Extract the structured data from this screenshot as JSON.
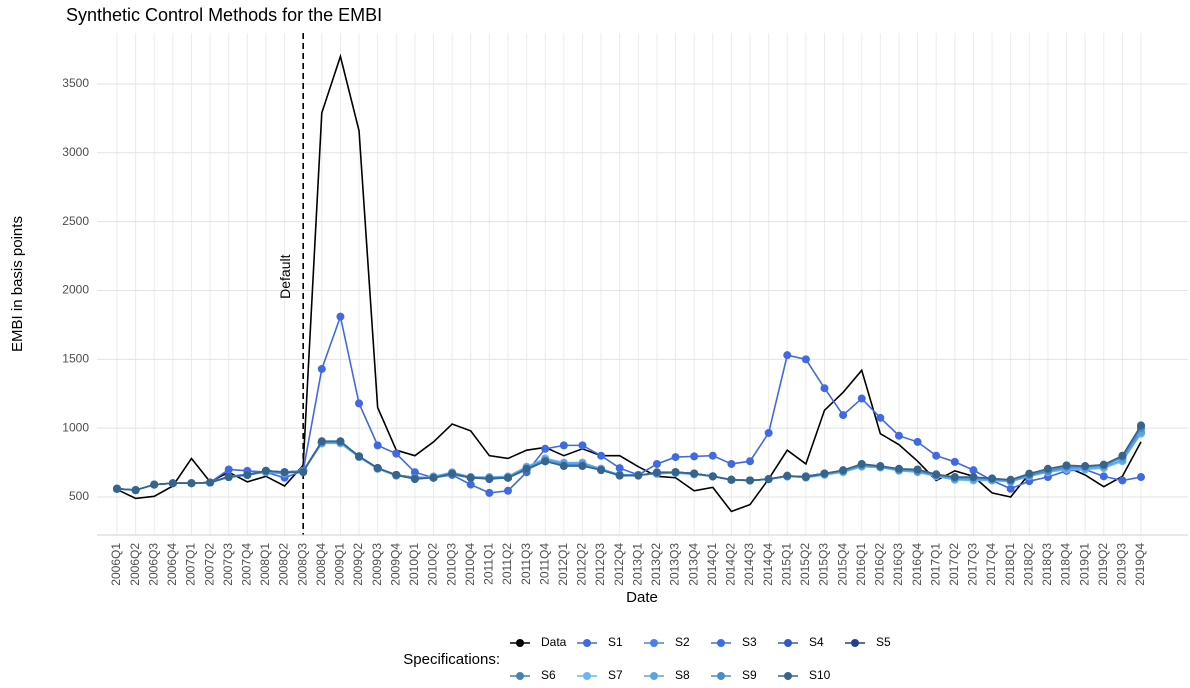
{
  "chart_data": {
    "type": "line",
    "title": "Synthetic Control Methods for the EMBI",
    "x_label": "Date",
    "y_label": "EMBI in basis points",
    "legend_title": "Specifications:",
    "annotation": {
      "text": "Default",
      "category": "2008Q3"
    },
    "categories": [
      "2006Q1",
      "2006Q2",
      "2006Q3",
      "2006Q4",
      "2007Q1",
      "2007Q2",
      "2007Q3",
      "2007Q4",
      "2008Q1",
      "2008Q2",
      "2008Q3",
      "2008Q4",
      "2009Q1",
      "2009Q2",
      "2009Q3",
      "2009Q4",
      "2010Q1",
      "2010Q2",
      "2010Q3",
      "2010Q4",
      "2011Q1",
      "2011Q2",
      "2011Q3",
      "2011Q4",
      "2012Q1",
      "2012Q2",
      "2012Q3",
      "2012Q4",
      "2013Q1",
      "2013Q2",
      "2013Q3",
      "2013Q4",
      "2014Q1",
      "2014Q2",
      "2014Q3",
      "2014Q4",
      "2015Q1",
      "2015Q2",
      "2015Q3",
      "2015Q4",
      "2016Q1",
      "2016Q2",
      "2016Q3",
      "2016Q4",
      "2017Q1",
      "2017Q2",
      "2017Q3",
      "2017Q4",
      "2018Q1",
      "2018Q2",
      "2018Q3",
      "2018Q4",
      "2019Q1",
      "2019Q2",
      "2019Q3",
      "2019Q4"
    ],
    "ylim": [
      224,
      3870
    ],
    "yticks": [
      500,
      1000,
      1500,
      2000,
      2500,
      3000,
      3500
    ],
    "grid": true,
    "legend_position": "bottom",
    "series": [
      {
        "name": "Data",
        "color": "#000000",
        "marker": false,
        "values": [
          555,
          490,
          505,
          580,
          780,
          610,
          680,
          610,
          650,
          580,
          730,
          3290,
          3700,
          3160,
          1150,
          840,
          800,
          900,
          1030,
          980,
          800,
          780,
          840,
          860,
          800,
          850,
          800,
          800,
          720,
          650,
          640,
          545,
          570,
          395,
          445,
          630,
          840,
          740,
          1130,
          1260,
          1420,
          960,
          880,
          760,
          620,
          690,
          650,
          530,
          500,
          670,
          680,
          720,
          660,
          575,
          650,
          900
        ]
      },
      {
        "name": "S1",
        "color": "#4169e1",
        "marker": true,
        "values": [
          560,
          550,
          590,
          600,
          600,
          605,
          700,
          690,
          680,
          640,
          690,
          1430,
          1810,
          1180,
          875,
          815,
          680,
          640,
          660,
          590,
          530,
          545,
          680,
          850,
          875,
          875,
          800,
          710,
          660,
          740,
          790,
          795,
          800,
          740,
          760,
          965,
          1530,
          1500,
          1290,
          1095,
          1215,
          1075,
          945,
          900,
          800,
          755,
          695,
          620,
          560,
          615,
          645,
          690,
          700,
          650,
          620,
          645
        ]
      },
      {
        "name": "S2",
        "color": "#4a7fef",
        "marker": true,
        "values": [
          560,
          550,
          590,
          600,
          600,
          605,
          650,
          665,
          690,
          680,
          690,
          890,
          900,
          795,
          710,
          660,
          640,
          640,
          665,
          640,
          635,
          640,
          700,
          780,
          740,
          740,
          705,
          660,
          660,
          670,
          680,
          670,
          650,
          625,
          620,
          630,
          650,
          650,
          670,
          690,
          730,
          720,
          700,
          690,
          660,
          640,
          640,
          630,
          620,
          660,
          690,
          720,
          720,
          730,
          790,
          970
        ]
      },
      {
        "name": "S3",
        "color": "#3e6fe0",
        "marker": true,
        "values": [
          560,
          550,
          590,
          600,
          600,
          605,
          645,
          660,
          690,
          680,
          690,
          900,
          900,
          795,
          710,
          660,
          640,
          640,
          665,
          640,
          635,
          640,
          700,
          760,
          730,
          730,
          700,
          660,
          660,
          670,
          680,
          670,
          650,
          625,
          620,
          630,
          650,
          650,
          670,
          690,
          730,
          720,
          700,
          690,
          660,
          640,
          640,
          630,
          620,
          660,
          690,
          720,
          720,
          730,
          790,
          1000
        ]
      },
      {
        "name": "S4",
        "color": "#3558c8",
        "marker": true,
        "values": [
          560,
          550,
          590,
          600,
          600,
          605,
          645,
          660,
          690,
          680,
          690,
          900,
          900,
          795,
          710,
          660,
          640,
          640,
          665,
          640,
          630,
          640,
          700,
          760,
          730,
          730,
          700,
          660,
          660,
          670,
          680,
          670,
          650,
          625,
          620,
          630,
          650,
          650,
          670,
          690,
          730,
          720,
          700,
          690,
          660,
          640,
          640,
          630,
          620,
          660,
          690,
          720,
          720,
          730,
          790,
          1000
        ]
      },
      {
        "name": "S5",
        "color": "#27408b",
        "marker": true,
        "values": [
          560,
          550,
          590,
          600,
          600,
          605,
          645,
          660,
          690,
          680,
          690,
          900,
          900,
          795,
          710,
          660,
          640,
          640,
          665,
          640,
          635,
          640,
          700,
          760,
          730,
          730,
          700,
          660,
          660,
          670,
          680,
          670,
          650,
          625,
          620,
          630,
          650,
          650,
          670,
          690,
          730,
          720,
          700,
          690,
          660,
          640,
          640,
          630,
          620,
          660,
          690,
          720,
          720,
          730,
          790,
          1010
        ]
      },
      {
        "name": "S6",
        "color": "#4682b4",
        "marker": true,
        "values": [
          560,
          550,
          590,
          600,
          600,
          605,
          645,
          660,
          690,
          680,
          690,
          900,
          900,
          795,
          710,
          660,
          640,
          640,
          665,
          640,
          635,
          640,
          700,
          760,
          730,
          730,
          700,
          660,
          660,
          670,
          680,
          670,
          650,
          625,
          620,
          630,
          650,
          650,
          670,
          690,
          730,
          720,
          700,
          690,
          660,
          640,
          640,
          630,
          620,
          660,
          690,
          720,
          720,
          730,
          790,
          1010
        ]
      },
      {
        "name": "S7",
        "color": "#6cb6f0",
        "marker": true,
        "values": [
          560,
          550,
          590,
          600,
          600,
          605,
          645,
          660,
          680,
          670,
          690,
          890,
          890,
          790,
          705,
          655,
          635,
          650,
          680,
          645,
          645,
          650,
          720,
          780,
          750,
          750,
          705,
          660,
          660,
          670,
          675,
          665,
          650,
          625,
          620,
          630,
          650,
          640,
          660,
          680,
          720,
          715,
          690,
          680,
          650,
          625,
          620,
          620,
          610,
          650,
          680,
          700,
          700,
          710,
          760,
          960
        ]
      },
      {
        "name": "S8",
        "color": "#5aa4e6",
        "marker": true,
        "values": [
          560,
          550,
          590,
          600,
          600,
          605,
          645,
          660,
          680,
          670,
          690,
          890,
          895,
          790,
          705,
          655,
          635,
          645,
          675,
          645,
          640,
          645,
          715,
          770,
          745,
          745,
          700,
          660,
          660,
          670,
          675,
          665,
          650,
          625,
          620,
          630,
          650,
          645,
          665,
          685,
          725,
          715,
          695,
          685,
          655,
          630,
          630,
          625,
          615,
          655,
          685,
          710,
          710,
          720,
          770,
          970
        ]
      },
      {
        "name": "S9",
        "color": "#4b8bc8",
        "marker": true,
        "values": [
          560,
          550,
          590,
          600,
          600,
          605,
          645,
          660,
          690,
          680,
          690,
          900,
          900,
          795,
          710,
          660,
          640,
          640,
          665,
          640,
          635,
          640,
          700,
          760,
          730,
          730,
          700,
          660,
          660,
          670,
          680,
          670,
          650,
          625,
          620,
          630,
          650,
          650,
          670,
          690,
          730,
          720,
          700,
          690,
          660,
          640,
          640,
          630,
          620,
          660,
          690,
          720,
          720,
          730,
          790,
          1000
        ]
      },
      {
        "name": "S10",
        "color": "#36648b",
        "marker": true,
        "values": [
          560,
          550,
          590,
          600,
          600,
          605,
          645,
          660,
          690,
          680,
          680,
          905,
          905,
          795,
          710,
          660,
          630,
          640,
          670,
          640,
          635,
          640,
          705,
          760,
          725,
          725,
          695,
          655,
          655,
          680,
          680,
          670,
          650,
          625,
          620,
          630,
          655,
          645,
          670,
          695,
          740,
          725,
          705,
          700,
          665,
          645,
          645,
          635,
          625,
          670,
          705,
          730,
          725,
          735,
          800,
          1020
        ]
      }
    ]
  }
}
